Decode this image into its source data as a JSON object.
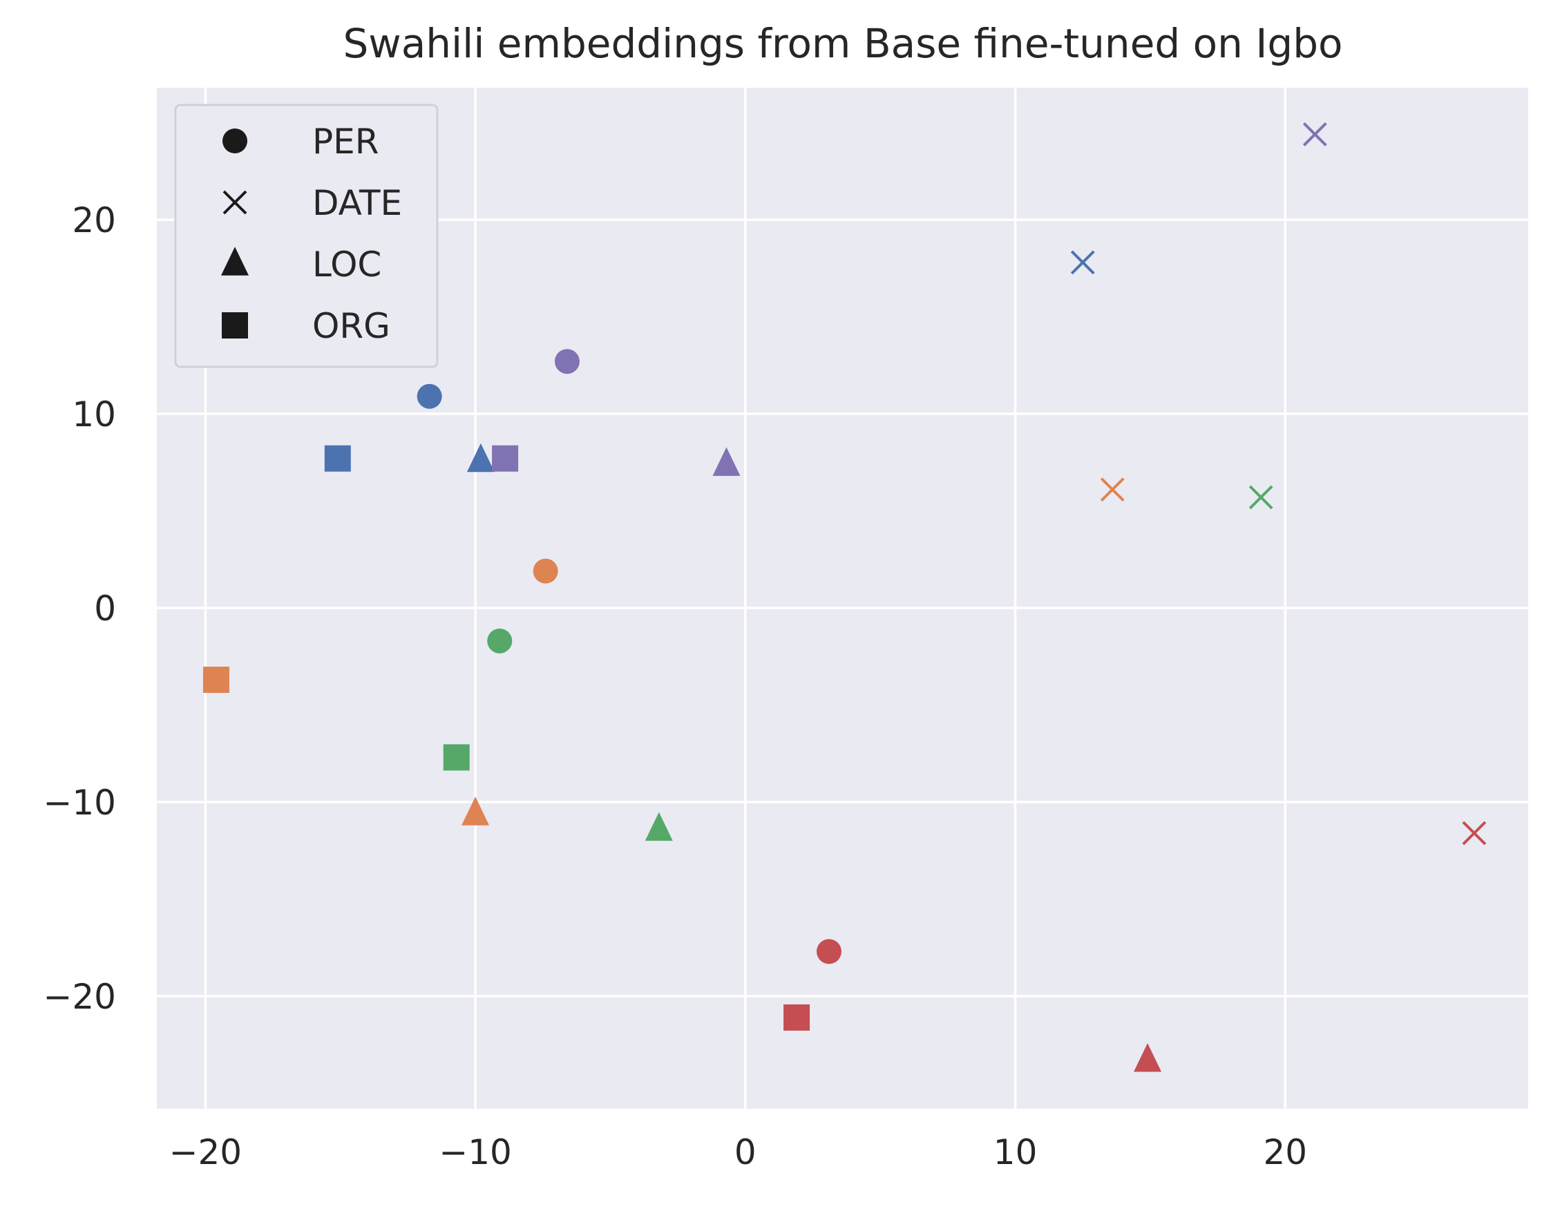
{
  "chart_data": {
    "type": "scatter",
    "title": "Swahili embeddings from Base fine-tuned on Igbo",
    "xlabel": "",
    "ylabel": "",
    "xlim": [
      -21.8,
      29.0
    ],
    "ylim": [
      -25.8,
      26.8
    ],
    "xticks": [
      -20,
      -10,
      0,
      10,
      20
    ],
    "yticks": [
      -20,
      -10,
      0,
      10,
      20
    ],
    "xtick_labels": [
      "−20",
      "−10",
      "0",
      "10",
      "20"
    ],
    "ytick_labels": [
      "−20",
      "−10",
      "0",
      "10",
      "20"
    ],
    "grid": true,
    "legend_position": "top-left",
    "legend": [
      {
        "marker": "circle",
        "label": "PER"
      },
      {
        "marker": "x",
        "label": "DATE"
      },
      {
        "marker": "triangle",
        "label": "LOC"
      },
      {
        "marker": "square",
        "label": "ORG"
      }
    ],
    "colors": {
      "blue": "#4c72b0",
      "orange": "#dd8452",
      "green": "#55a868",
      "red": "#c44e52",
      "purple": "#8172b3"
    },
    "points": [
      {
        "x": -11.7,
        "y": 10.9,
        "marker": "circle",
        "color": "blue"
      },
      {
        "x": -7.4,
        "y": 1.9,
        "marker": "circle",
        "color": "orange"
      },
      {
        "x": -9.1,
        "y": -1.7,
        "marker": "circle",
        "color": "green"
      },
      {
        "x": 3.1,
        "y": -17.7,
        "marker": "circle",
        "color": "red"
      },
      {
        "x": -6.6,
        "y": 12.7,
        "marker": "circle",
        "color": "purple"
      },
      {
        "x": 12.5,
        "y": 17.8,
        "marker": "x",
        "color": "blue"
      },
      {
        "x": 13.6,
        "y": 6.1,
        "marker": "x",
        "color": "orange"
      },
      {
        "x": 19.1,
        "y": 5.7,
        "marker": "x",
        "color": "green"
      },
      {
        "x": 27.0,
        "y": -11.6,
        "marker": "x",
        "color": "red"
      },
      {
        "x": 21.1,
        "y": 24.4,
        "marker": "x",
        "color": "purple"
      },
      {
        "x": -9.8,
        "y": 7.6,
        "marker": "triangle",
        "color": "blue"
      },
      {
        "x": -10.0,
        "y": -10.6,
        "marker": "triangle",
        "color": "orange"
      },
      {
        "x": -3.2,
        "y": -11.4,
        "marker": "triangle",
        "color": "green"
      },
      {
        "x": 14.9,
        "y": -23.3,
        "marker": "triangle",
        "color": "red"
      },
      {
        "x": -0.7,
        "y": 7.4,
        "marker": "triangle",
        "color": "purple"
      },
      {
        "x": -15.1,
        "y": 7.7,
        "marker": "square",
        "color": "blue"
      },
      {
        "x": -19.6,
        "y": -3.7,
        "marker": "square",
        "color": "orange"
      },
      {
        "x": -10.7,
        "y": -7.7,
        "marker": "square",
        "color": "green"
      },
      {
        "x": 1.9,
        "y": -21.1,
        "marker": "square",
        "color": "red"
      },
      {
        "x": -8.9,
        "y": 7.7,
        "marker": "square",
        "color": "purple"
      }
    ]
  }
}
